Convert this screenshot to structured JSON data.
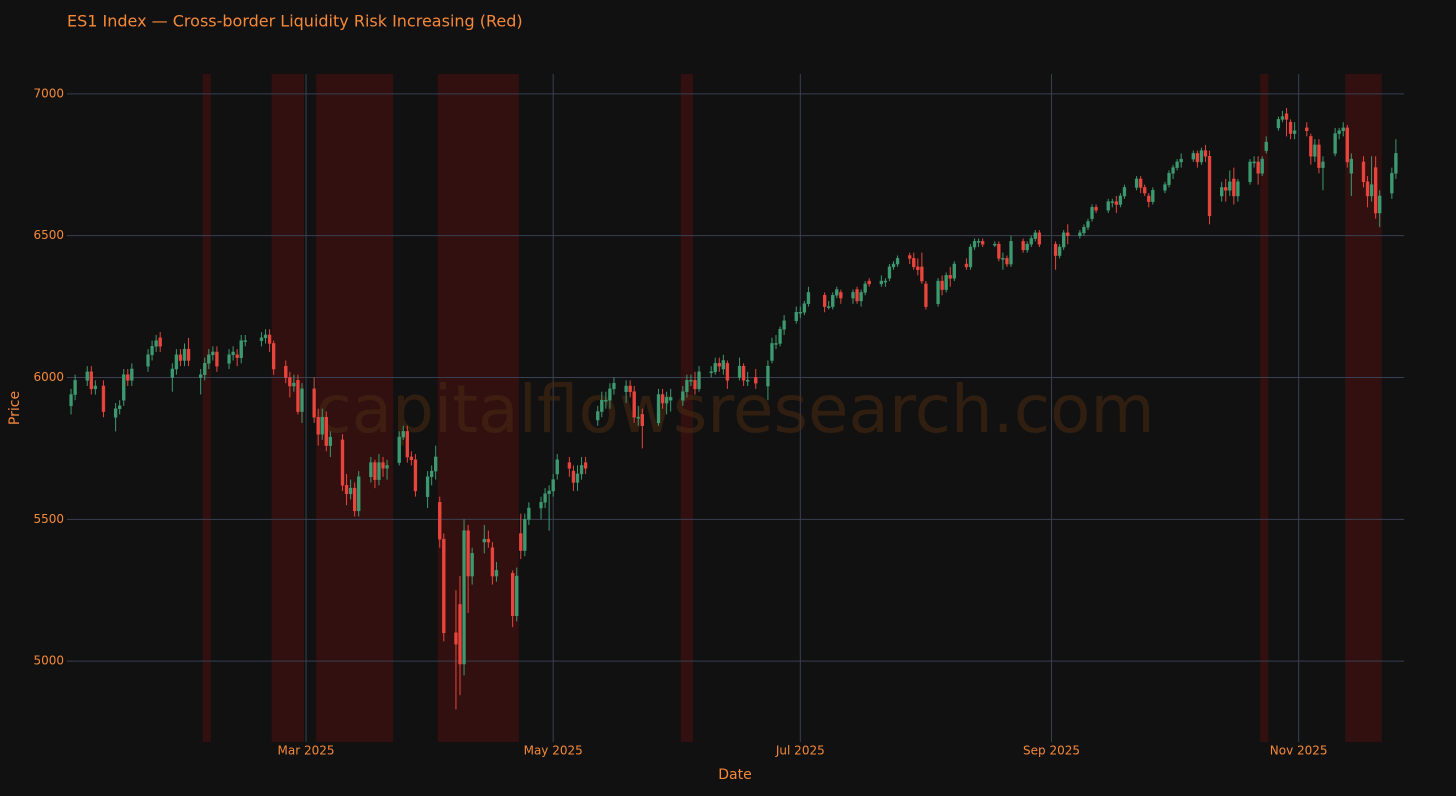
{
  "chart_data": {
    "type": "candlestick",
    "title": "ES1 Index — Cross-border Liquidity Risk Increasing (Red)",
    "watermark": "capitalflowsresearch.com",
    "x_label": "Date",
    "y_label": "Price",
    "increasing_color": "#3d9970",
    "decreasing_color": "#e8453c",
    "grid": true,
    "regions": {
      "color": "#5a1010",
      "spans": [
        {
          "start": "2025-02-04",
          "end": "2025-02-05"
        },
        {
          "start": "2025-02-21",
          "end": "2025-02-28"
        },
        {
          "start": "2025-03-04",
          "end": "2025-03-22"
        },
        {
          "start": "2025-04-03",
          "end": "2025-04-22"
        },
        {
          "start": "2025-06-02",
          "end": "2025-06-04"
        },
        {
          "start": "2025-10-23",
          "end": "2025-10-24"
        },
        {
          "start": "2025-11-13",
          "end": "2025-11-21"
        }
      ]
    },
    "xlim": [
      "2025-01-01",
      "2025-11-27"
    ],
    "xticks": [
      {
        "value": "2025-03-01",
        "label": "Mar 2025"
      },
      {
        "value": "2025-05-01",
        "label": "May 2025"
      },
      {
        "value": "2025-07-01",
        "label": "Jul 2025"
      },
      {
        "value": "2025-09-01",
        "label": "Sep 2025"
      },
      {
        "value": "2025-11-01",
        "label": "Nov 2025"
      }
    ],
    "ylim": [
      4715,
      7070
    ],
    "yticks": [
      5000,
      5500,
      6000,
      6500,
      7000
    ],
    "x": [
      "2025-01-02",
      "2025-01-03",
      "2025-01-06",
      "2025-01-07",
      "2025-01-08",
      "2025-01-10",
      "2025-01-13",
      "2025-01-14",
      "2025-01-15",
      "2025-01-16",
      "2025-01-17",
      "2025-01-21",
      "2025-01-22",
      "2025-01-23",
      "2025-01-24",
      "2025-01-27",
      "2025-01-28",
      "2025-01-29",
      "2025-01-30",
      "2025-01-31",
      "2025-02-03",
      "2025-02-04",
      "2025-02-05",
      "2025-02-06",
      "2025-02-07",
      "2025-02-10",
      "2025-02-11",
      "2025-02-12",
      "2025-02-13",
      "2025-02-14",
      "2025-02-18",
      "2025-02-19",
      "2025-02-20",
      "2025-02-21",
      "2025-02-24",
      "2025-02-25",
      "2025-02-26",
      "2025-02-27",
      "2025-02-28",
      "2025-03-03",
      "2025-03-04",
      "2025-03-05",
      "2025-03-06",
      "2025-03-07",
      "2025-03-10",
      "2025-03-11",
      "2025-03-12",
      "2025-03-13",
      "2025-03-14",
      "2025-03-17",
      "2025-03-18",
      "2025-03-19",
      "2025-03-20",
      "2025-03-21",
      "2025-03-24",
      "2025-03-25",
      "2025-03-26",
      "2025-03-27",
      "2025-03-28",
      "2025-03-31",
      "2025-04-01",
      "2025-04-02",
      "2025-04-03",
      "2025-04-04",
      "2025-04-07",
      "2025-04-08",
      "2025-04-09",
      "2025-04-10",
      "2025-04-11",
      "2025-04-14",
      "2025-04-15",
      "2025-04-16",
      "2025-04-17",
      "2025-04-21",
      "2025-04-22",
      "2025-04-23",
      "2025-04-24",
      "2025-04-25",
      "2025-04-28",
      "2025-04-29",
      "2025-04-30",
      "2025-05-01",
      "2025-05-02",
      "2025-05-05",
      "2025-05-06",
      "2025-05-07",
      "2025-05-08",
      "2025-05-09",
      "2025-05-12",
      "2025-05-13",
      "2025-05-14",
      "2025-05-15",
      "2025-05-16",
      "2025-05-19",
      "2025-05-20",
      "2025-05-21",
      "2025-05-22",
      "2025-05-23",
      "2025-05-27",
      "2025-05-28",
      "2025-05-29",
      "2025-05-30",
      "2025-06-02",
      "2025-06-03",
      "2025-06-04",
      "2025-06-05",
      "2025-06-06",
      "2025-06-09",
      "2025-06-10",
      "2025-06-11",
      "2025-06-12",
      "2025-06-13",
      "2025-06-16",
      "2025-06-17",
      "2025-06-18",
      "2025-06-20",
      "2025-06-23",
      "2025-06-24",
      "2025-06-25",
      "2025-06-26",
      "2025-06-27",
      "2025-06-30",
      "2025-07-01",
      "2025-07-02",
      "2025-07-03",
      "2025-07-07",
      "2025-07-08",
      "2025-07-09",
      "2025-07-10",
      "2025-07-11",
      "2025-07-14",
      "2025-07-15",
      "2025-07-16",
      "2025-07-17",
      "2025-07-18",
      "2025-07-21",
      "2025-07-22",
      "2025-07-23",
      "2025-07-24",
      "2025-07-25",
      "2025-07-28",
      "2025-07-29",
      "2025-07-30",
      "2025-07-31",
      "2025-08-01",
      "2025-08-04",
      "2025-08-05",
      "2025-08-06",
      "2025-08-07",
      "2025-08-08",
      "2025-08-11",
      "2025-08-12",
      "2025-08-13",
      "2025-08-14",
      "2025-08-15",
      "2025-08-18",
      "2025-08-19",
      "2025-08-20",
      "2025-08-21",
      "2025-08-22",
      "2025-08-25",
      "2025-08-26",
      "2025-08-27",
      "2025-08-28",
      "2025-08-29",
      "2025-09-02",
      "2025-09-03",
      "2025-09-04",
      "2025-09-05",
      "2025-09-08",
      "2025-09-09",
      "2025-09-10",
      "2025-09-11",
      "2025-09-12",
      "2025-09-15",
      "2025-09-16",
      "2025-09-17",
      "2025-09-18",
      "2025-09-19",
      "2025-09-22",
      "2025-09-23",
      "2025-09-24",
      "2025-09-25",
      "2025-09-26",
      "2025-09-29",
      "2025-09-30",
      "2025-10-01",
      "2025-10-02",
      "2025-10-03",
      "2025-10-06",
      "2025-10-07",
      "2025-10-08",
      "2025-10-09",
      "2025-10-10",
      "2025-10-13",
      "2025-10-14",
      "2025-10-15",
      "2025-10-16",
      "2025-10-17",
      "2025-10-20",
      "2025-10-21",
      "2025-10-22",
      "2025-10-23",
      "2025-10-24",
      "2025-10-27",
      "2025-10-28",
      "2025-10-29",
      "2025-10-30",
      "2025-10-31",
      "2025-11-03",
      "2025-11-04",
      "2025-11-05",
      "2025-11-06",
      "2025-11-07",
      "2025-11-10",
      "2025-11-11",
      "2025-11-12",
      "2025-11-13",
      "2025-11-14",
      "2025-11-17",
      "2025-11-18",
      "2025-11-19",
      "2025-11-20",
      "2025-11-21",
      "2025-11-24",
      "2025-11-25"
    ],
    "open": [
      5900,
      5940,
      5990,
      6020,
      5960,
      5970,
      5860,
      5890,
      5920,
      6010,
      5990,
      6040,
      6080,
      6110,
      6140,
      6000,
      6030,
      6080,
      6060,
      6100,
      6000,
      6010,
      6050,
      6080,
      6090,
      6050,
      6080,
      6080,
      6070,
      6130,
      6130,
      6140,
      6150,
      6120,
      6040,
      6000,
      5970,
      5990,
      5880,
      5960,
      5860,
      5800,
      5860,
      5760,
      5780,
      5620,
      5590,
      5610,
      5530,
      5650,
      5700,
      5640,
      5700,
      5680,
      5700,
      5790,
      5810,
      5720,
      5710,
      5580,
      5650,
      5670,
      5560,
      5430,
      5100,
      5200,
      4990,
      5460,
      5300,
      5420,
      5430,
      5400,
      5300,
      5310,
      5160,
      5450,
      5390,
      5500,
      5540,
      5560,
      5590,
      5600,
      5660,
      5700,
      5670,
      5630,
      5660,
      5700,
      5850,
      5880,
      5920,
      5920,
      5960,
      5950,
      5970,
      5950,
      5860,
      5870,
      5840,
      5940,
      5910,
      5920,
      5920,
      5950,
      5990,
      5990,
      5960,
      6020,
      6020,
      6050,
      6030,
      6050,
      6000,
      6040,
      5990,
      6000,
      5970,
      6060,
      6120,
      6120,
      6170,
      6200,
      6230,
      6230,
      6260,
      6290,
      6250,
      6250,
      6290,
      6300,
      6280,
      6310,
      6270,
      6300,
      6340,
      6330,
      6340,
      6350,
      6390,
      6400,
      6430,
      6420,
      6390,
      6390,
      6330,
      6260,
      6340,
      6310,
      6360,
      6350,
      6400,
      6390,
      6460,
      6480,
      6480,
      6470,
      6470,
      6420,
      6420,
      6400,
      6480,
      6450,
      6470,
      6490,
      6510,
      6470,
      6430,
      6460,
      6510,
      6500,
      6510,
      6530,
      6560,
      6600,
      6590,
      6620,
      6620,
      6610,
      6640,
      6670,
      6700,
      6670,
      6640,
      6620,
      6660,
      6680,
      6720,
      6740,
      6760,
      6770,
      6790,
      6760,
      6800,
      6780,
      6640,
      6670,
      6660,
      6700,
      6640,
      6690,
      6760,
      6760,
      6720,
      6800,
      6880,
      6910,
      6930,
      6900,
      6860,
      6880,
      6850,
      6780,
      6820,
      6740,
      6790,
      6860,
      6870,
      6880,
      6720,
      6760,
      6690,
      6640,
      6740,
      6580,
      6650,
      6720
    ],
    "high": [
      5960,
      6010,
      6040,
      6040,
      5990,
      5990,
      5910,
      5920,
      6030,
      6030,
      6050,
      6100,
      6130,
      6150,
      6160,
      6050,
      6100,
      6100,
      6120,
      6140,
      6030,
      6070,
      6100,
      6110,
      6110,
      6100,
      6110,
      6100,
      6150,
      6150,
      6160,
      6170,
      6170,
      6130,
      6060,
      6020,
      6010,
      6010,
      5980,
      6000,
      5890,
      5890,
      5880,
      5810,
      5800,
      5660,
      5640,
      5630,
      5670,
      5720,
      5710,
      5730,
      5720,
      5710,
      5810,
      5830,
      5830,
      5740,
      5730,
      5670,
      5690,
      5760,
      5580,
      5450,
      5250,
      5300,
      5500,
      5480,
      5400,
      5480,
      5460,
      5420,
      5350,
      5320,
      5330,
      5520,
      5520,
      5560,
      5580,
      5610,
      5620,
      5660,
      5730,
      5720,
      5690,
      5690,
      5720,
      5720,
      5900,
      5950,
      5950,
      5980,
      6000,
      5990,
      5990,
      5970,
      5900,
      5890,
      5960,
      5960,
      5950,
      5960,
      5970,
      6010,
      6010,
      6020,
      6040,
      6040,
      6070,
      6070,
      6080,
      6060,
      6070,
      6050,
      6020,
      6030,
      6060,
      6140,
      6150,
      6180,
      6220,
      6250,
      6250,
      6270,
      6320,
      6300,
      6270,
      6300,
      6320,
      6310,
      6310,
      6320,
      6310,
      6340,
      6350,
      6360,
      6350,
      6400,
      6410,
      6430,
      6440,
      6440,
      6420,
      6440,
      6340,
      6350,
      6360,
      6370,
      6390,
      6410,
      6420,
      6470,
      6490,
      6490,
      6490,
      6480,
      6480,
      6440,
      6430,
      6500,
      6490,
      6480,
      6500,
      6520,
      6520,
      6480,
      6470,
      6520,
      6540,
      6520,
      6540,
      6560,
      6610,
      6610,
      6630,
      6630,
      6640,
      6650,
      6680,
      6710,
      6710,
      6680,
      6650,
      6670,
      6690,
      6730,
      6750,
      6770,
      6790,
      6800,
      6800,
      6810,
      6820,
      6800,
      6690,
      6700,
      6730,
      6740,
      6700,
      6770,
      6780,
      6780,
      6780,
      6850,
      6920,
      6940,
      6950,
      6910,
      6900,
      6900,
      6860,
      6840,
      6840,
      6780,
      6880,
      6880,
      6900,
      6890,
      6790,
      6780,
      6710,
      6780,
      6780,
      6660,
      6740,
      6840
    ],
    "low": [
      5870,
      5920,
      5970,
      5940,
      5940,
      5860,
      5810,
      5870,
      5900,
      5970,
      5970,
      6020,
      6060,
      6090,
      6090,
      5950,
      6010,
      6040,
      6040,
      6040,
      5940,
      5990,
      6030,
      6060,
      6020,
      6030,
      6060,
      6040,
      6050,
      6110,
      6110,
      6120,
      6090,
      6010,
      5980,
      5930,
      5950,
      5870,
      5840,
      5840,
      5760,
      5780,
      5740,
      5720,
      5600,
      5550,
      5570,
      5510,
      5510,
      5630,
      5610,
      5620,
      5650,
      5640,
      5690,
      5780,
      5700,
      5690,
      5580,
      5540,
      5620,
      5640,
      5400,
      5070,
      4830,
      4880,
      4950,
      5170,
      5270,
      5380,
      5400,
      5270,
      5280,
      5120,
      5140,
      5360,
      5370,
      5480,
      5500,
      5540,
      5460,
      5580,
      5640,
      5650,
      5600,
      5600,
      5640,
      5660,
      5830,
      5860,
      5890,
      5890,
      5940,
      5910,
      5930,
      5840,
      5830,
      5750,
      5830,
      5890,
      5870,
      5880,
      5900,
      5930,
      5970,
      5940,
      5950,
      6000,
      6010,
      6020,
      6010,
      5960,
      5990,
      5970,
      5970,
      5960,
      5920,
      6050,
      6100,
      6110,
      6150,
      6190,
      6210,
      6220,
      6250,
      6230,
      6240,
      6240,
      6280,
      6260,
      6260,
      6260,
      6250,
      6290,
      6320,
      6320,
      6320,
      6340,
      6380,
      6390,
      6400,
      6380,
      6360,
      6330,
      6240,
      6250,
      6290,
      6300,
      6320,
      6340,
      6380,
      6380,
      6450,
      6460,
      6460,
      6460,
      6410,
      6380,
      6390,
      6390,
      6440,
      6440,
      6460,
      6480,
      6460,
      6380,
      6420,
      6450,
      6470,
      6490,
      6500,
      6520,
      6550,
      6580,
      6580,
      6600,
      6580,
      6600,
      6630,
      6660,
      6650,
      6640,
      6600,
      6610,
      6650,
      6670,
      6700,
      6730,
      6740,
      6760,
      6740,
      6750,
      6760,
      6540,
      6620,
      6620,
      6640,
      6610,
      6620,
      6680,
      6740,
      6680,
      6710,
      6790,
      6870,
      6900,
      6850,
      6840,
      6840,
      6850,
      6750,
      6760,
      6720,
      6660,
      6780,
      6840,
      6850,
      6740,
      6640,
      6670,
      6600,
      6620,
      6560,
      6530,
      6630,
      6700
    ],
    "close": [
      5940,
      5990,
      6020,
      5960,
      5970,
      5880,
      5890,
      5900,
      6010,
      5990,
      6030,
      6080,
      6110,
      6130,
      6110,
      6030,
      6080,
      6060,
      6100,
      6060,
      6010,
      6050,
      6080,
      6090,
      6040,
      6080,
      6090,
      6070,
      6130,
      6130,
      6140,
      6150,
      6120,
      6030,
      6000,
      5970,
      5980,
      5880,
      5960,
      5860,
      5800,
      5860,
      5760,
      5790,
      5620,
      5590,
      5610,
      5530,
      5650,
      5700,
      5640,
      5700,
      5680,
      5690,
      5790,
      5810,
      5720,
      5710,
      5600,
      5650,
      5670,
      5720,
      5430,
      5100,
      5060,
      4990,
      5460,
      5300,
      5380,
      5430,
      5420,
      5300,
      5320,
      5160,
      5300,
      5390,
      5500,
      5540,
      5560,
      5590,
      5600,
      5640,
      5710,
      5680,
      5630,
      5660,
      5690,
      5680,
      5880,
      5920,
      5920,
      5960,
      5980,
      5970,
      5950,
      5860,
      5860,
      5830,
      5940,
      5910,
      5930,
      5930,
      5950,
      5990,
      5990,
      5960,
      6020,
      6020,
      6050,
      6040,
      6060,
      5990,
      6040,
      5990,
      5990,
      5980,
      6040,
      6120,
      6120,
      6170,
      6200,
      6230,
      6230,
      6260,
      6300,
      6250,
      6250,
      6290,
      6310,
      6280,
      6300,
      6270,
      6300,
      6330,
      6330,
      6340,
      6340,
      6390,
      6400,
      6420,
      6420,
      6390,
      6380,
      6340,
      6250,
      6340,
      6310,
      6360,
      6350,
      6400,
      6390,
      6460,
      6480,
      6480,
      6470,
      6470,
      6420,
      6420,
      6400,
      6480,
      6450,
      6470,
      6490,
      6510,
      6470,
      6430,
      6460,
      6510,
      6500,
      6510,
      6530,
      6550,
      6600,
      6590,
      6620,
      6620,
      6610,
      6640,
      6670,
      6700,
      6670,
      6650,
      6620,
      6660,
      6680,
      6720,
      6740,
      6760,
      6770,
      6790,
      6760,
      6800,
      6780,
      6570,
      6670,
      6660,
      6690,
      6640,
      6690,
      6760,
      6760,
      6720,
      6770,
      6830,
      6910,
      6920,
      6910,
      6860,
      6870,
      6870,
      6780,
      6820,
      6740,
      6760,
      6860,
      6870,
      6880,
      6760,
      6770,
      6690,
      6640,
      6680,
      6580,
      6640,
      6720,
      6790
    ]
  }
}
